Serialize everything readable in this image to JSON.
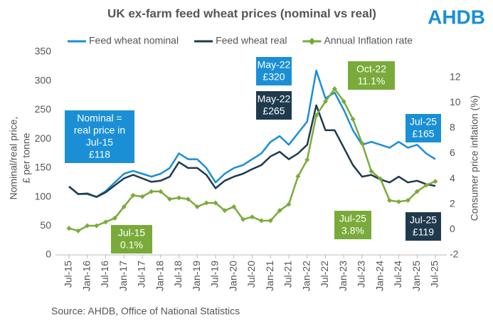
{
  "chart_data": {
    "type": "line",
    "title": "UK ex-farm feed wheat prices (nominal vs real)",
    "logo": "AHDB",
    "source": "Source: AHDB, Office of National Statistics",
    "y_label": [
      "Nominal/real price,",
      "£ per tonne"
    ],
    "y2_label": "Consumer price inflation  (%)",
    "categories": [
      "Jul-15",
      null,
      "Jan-16",
      null,
      "Jul-16",
      null,
      "Jan-17",
      null,
      "Jul-17",
      null,
      "Jan-18",
      null,
      "Jul-18",
      null,
      "Jan-19",
      null,
      "Jul-19",
      null,
      "Jan-20",
      null,
      "Jul-20",
      null,
      "Jan-21",
      null,
      "Jul-21",
      null,
      "Jan-22",
      null,
      "Jul-22",
      null,
      "Jan-23",
      null,
      "Jul-23",
      null,
      "Jan-24",
      null,
      "Jul-24",
      null,
      "Jan-25",
      null,
      "Jul-25"
    ],
    "ylim": [
      0,
      350
    ],
    "yticks": [
      0,
      50,
      100,
      150,
      200,
      250,
      300,
      350
    ],
    "y2lim": [
      -2,
      14
    ],
    "y2ticks": [
      -2,
      0,
      2,
      4,
      6,
      8,
      10,
      12
    ],
    "series": [
      {
        "name": "Feed wheat nominal",
        "color": "#1a8fd6",
        "values": [
          118,
          105,
          105,
          100,
          110,
          125,
          140,
          145,
          140,
          135,
          140,
          150,
          175,
          165,
          165,
          150,
          125,
          140,
          150,
          155,
          165,
          175,
          195,
          205,
          190,
          210,
          230,
          318,
          270,
          280,
          250,
          215,
          190,
          195,
          190,
          185,
          195,
          185,
          190,
          175,
          165
        ]
      },
      {
        "name": "Feed wheat real",
        "color": "#1f3a4d",
        "values": [
          118,
          105,
          106,
          100,
          108,
          120,
          132,
          138,
          132,
          126,
          128,
          135,
          160,
          150,
          150,
          138,
          115,
          128,
          135,
          140,
          148,
          155,
          170,
          178,
          165,
          175,
          190,
          258,
          215,
          215,
          185,
          155,
          135,
          138,
          130,
          125,
          135,
          125,
          128,
          122,
          119
        ]
      },
      {
        "name": "Annual Inflation rate",
        "color": "#7aab3a",
        "axis": "y2",
        "marker": "diamond",
        "values": [
          0.1,
          -0.1,
          0.3,
          0.3,
          0.6,
          0.9,
          1.8,
          2.7,
          2.6,
          3.0,
          3.0,
          2.4,
          2.5,
          2.4,
          1.8,
          2.1,
          2.1,
          1.5,
          1.8,
          0.8,
          1.0,
          0.7,
          0.7,
          1.5,
          2.0,
          4.2,
          5.5,
          9.0,
          10.1,
          11.1,
          10.1,
          8.7,
          6.8,
          4.6,
          4.0,
          2.3,
          2.2,
          2.3,
          3.0,
          3.5,
          3.8
        ]
      }
    ],
    "annotations": [
      {
        "lines": [
          "Nominal =",
          "real price in",
          "Jul-15",
          "£118"
        ],
        "color": "#1a8fd6"
      },
      {
        "lines": [
          "Jul-15",
          "0.1%"
        ],
        "color": "#7aab3a"
      },
      {
        "lines": [
          "May-22",
          "£320"
        ],
        "color": "#1a8fd6"
      },
      {
        "lines": [
          "May-22",
          "£265"
        ],
        "color": "#1f3a4d"
      },
      {
        "lines": [
          "Oct-22",
          "11.1%"
        ],
        "color": "#7aab3a"
      },
      {
        "lines": [
          "Jul-25",
          "£165"
        ],
        "color": "#1a8fd6"
      },
      {
        "lines": [
          "Jul-25",
          "3.8%"
        ],
        "color": "#7aab3a"
      },
      {
        "lines": [
          "Jul-25",
          "£119"
        ],
        "color": "#1f3a4d"
      }
    ]
  }
}
